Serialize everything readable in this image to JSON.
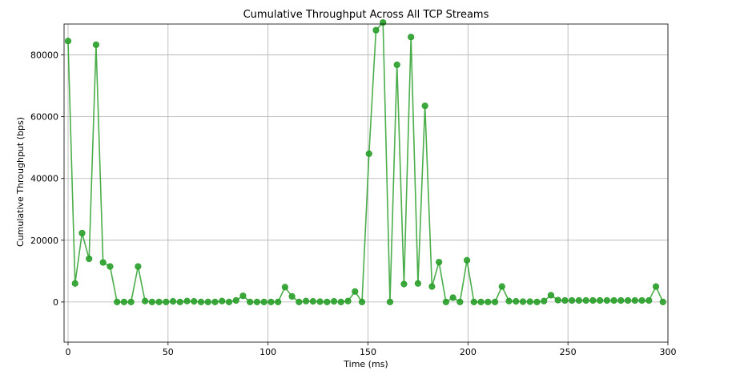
{
  "chart_data": {
    "type": "line",
    "title": "Cumulative Throughput Across All TCP Streams",
    "xlabel": "Time (ms)",
    "ylabel": "Cumulative Throughput (bps)",
    "xlim": [
      -2,
      300
    ],
    "ylim": [
      -13000,
      90000
    ],
    "xticks": [
      0,
      50,
      100,
      150,
      200,
      250,
      300
    ],
    "yticks": [
      0,
      20000,
      40000,
      60000,
      80000
    ],
    "grid": true,
    "legend": "none",
    "series": [
      {
        "color": "#2ca02c",
        "marker": "circle",
        "x": [
          0,
          3.5,
          7,
          10.5,
          14,
          17.5,
          21,
          24.5,
          28,
          31.5,
          35,
          38.5,
          42,
          45.5,
          49,
          52.5,
          56,
          59.5,
          63,
          66.5,
          70,
          73.5,
          77,
          80.5,
          84,
          87.5,
          91,
          94.5,
          98,
          101.5,
          105,
          108.5,
          112,
          115.5,
          119,
          122.5,
          126,
          129.5,
          133,
          136.5,
          140,
          143.5,
          147,
          150.5,
          154,
          157.5,
          161,
          164.5,
          168,
          171.5,
          175,
          178.5,
          182,
          185.5,
          189,
          192.5,
          196,
          199.5,
          203,
          206.5,
          210,
          213.5,
          217,
          220.5,
          224,
          227.5,
          231,
          234.5,
          238,
          241.5,
          245,
          248.5,
          252,
          255.5,
          259,
          262.5,
          266,
          269.5,
          273,
          276.5,
          280,
          283.5,
          287,
          290.5,
          294,
          297.5
        ],
        "y": [
          84500,
          6000,
          22300,
          14000,
          83300,
          12800,
          11500,
          0,
          0,
          0,
          11500,
          300,
          0,
          0,
          0,
          200,
          0,
          300,
          200,
          0,
          0,
          0,
          300,
          0,
          500,
          2000,
          0,
          0,
          0,
          0,
          0,
          4800,
          1800,
          0,
          300,
          200,
          100,
          0,
          200,
          0,
          300,
          3400,
          0,
          48000,
          88000,
          90500,
          0,
          76800,
          5800,
          85800,
          6000,
          63500,
          5000,
          12900,
          0,
          1400,
          0,
          13500,
          0,
          0,
          0,
          0,
          5000,
          300,
          200,
          100,
          100,
          0,
          300,
          2200,
          600,
          500,
          500,
          500,
          500,
          500,
          500,
          500,
          500,
          500,
          500,
          500,
          500,
          500,
          5000,
          0
        ]
      }
    ]
  }
}
